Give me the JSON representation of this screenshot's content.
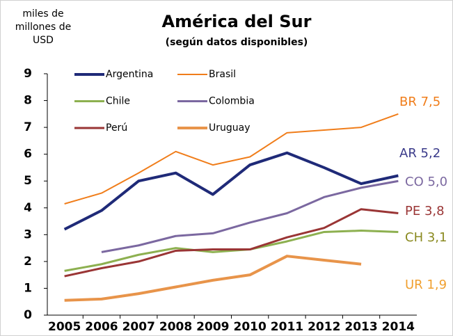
{
  "chart_data": {
    "type": "line",
    "title": "América del Sur",
    "subtitle": "(según datos disponibles)",
    "y_label": [
      "miles de",
      "millones de",
      "USD"
    ],
    "categories": [
      "2005",
      "2006",
      "2007",
      "2008",
      "2009",
      "2010",
      "2011",
      "2012",
      "2013",
      "2014"
    ],
    "ylim": [
      0,
      9
    ],
    "yticks": [
      0,
      1,
      2,
      3,
      4,
      5,
      6,
      7,
      8,
      9
    ],
    "legend": "top-left",
    "series": [
      {
        "name": "Argentina",
        "color": "#1f2a78",
        "width": 4,
        "values": [
          3.2,
          3.9,
          5.0,
          5.3,
          4.5,
          5.6,
          6.05,
          5.5,
          4.9,
          5.2
        ]
      },
      {
        "name": "Brasil",
        "color": "#f07d1a",
        "width": 2,
        "values": [
          4.15,
          4.55,
          5.3,
          6.1,
          5.6,
          5.9,
          6.8,
          6.9,
          7.0,
          7.5
        ]
      },
      {
        "name": "Chile",
        "color": "#8db050",
        "width": 3,
        "values": [
          1.65,
          1.9,
          2.25,
          2.5,
          2.35,
          2.45,
          2.75,
          3.1,
          3.15,
          3.1
        ]
      },
      {
        "name": "Colombia",
        "color": "#7b68a0",
        "width": 3,
        "values": [
          null,
          2.35,
          2.6,
          2.95,
          3.05,
          3.45,
          3.8,
          4.4,
          4.75,
          5.0
        ]
      },
      {
        "name": "Perú",
        "color": "#9a3535",
        "width": 3,
        "values": [
          1.45,
          1.75,
          2.0,
          2.4,
          2.45,
          2.45,
          2.9,
          3.25,
          3.95,
          3.8
        ]
      },
      {
        "name": "Uruguay",
        "color": "#e8944a",
        "width": 4,
        "values": [
          0.55,
          0.6,
          0.8,
          1.05,
          1.3,
          1.5,
          2.2,
          2.05,
          1.9,
          null
        ]
      }
    ],
    "annotations": [
      {
        "text": "BR 7,5",
        "color": "#f07d1a"
      },
      {
        "text": "AR 5,2",
        "color": "#3a3a8a"
      },
      {
        "text": "CO 5,0",
        "color": "#7b68a0"
      },
      {
        "text": "PE 3,8",
        "color": "#9a3535"
      },
      {
        "text": "CH 3,1",
        "color": "#8a8a20"
      },
      {
        "text": "UR 1,9",
        "color": "#f0a030"
      }
    ]
  }
}
